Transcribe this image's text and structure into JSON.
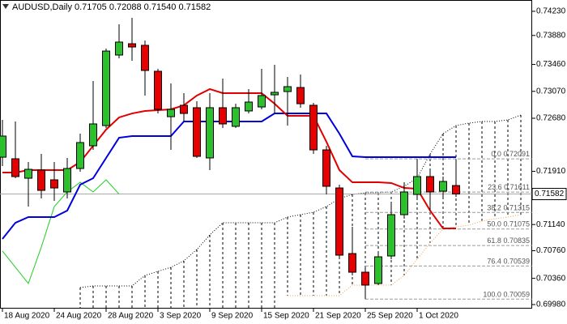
{
  "chart_data": {
    "type": "candlestick",
    "title": "AUDUSD,Daily  0.71705 0.72088 0.71540 0.71582",
    "categories": [
      "18 Aug 2020",
      null,
      null,
      null,
      "24 Aug 2020",
      null,
      null,
      null,
      "28 Aug 2020",
      null,
      null,
      null,
      "3 Sep 2020",
      null,
      null,
      null,
      "9 Sep 2020",
      null,
      null,
      null,
      "15 Sep 2020",
      null,
      null,
      null,
      "21 Sep 2020",
      null,
      null,
      null,
      "25 Sep 2020",
      null,
      null,
      null,
      "1 Oct 2020",
      null,
      null,
      null,
      null,
      null,
      null,
      null,
      null
    ],
    "candles": {
      "up_color": "#2cc02c",
      "down_color": "#e60000",
      "open": [
        0.72116,
        0.72093,
        0.71811,
        0.71929,
        0.71788,
        0.71612,
        0.71952,
        0.72281,
        0.72574,
        0.73596,
        0.7376,
        0.73737,
        0.73361,
        0.72703,
        0.72868,
        0.72833,
        0.72105,
        0.72833,
        0.72563,
        0.72786,
        0.72844,
        0.7302,
        0.73067,
        0.73126,
        0.72868,
        0.72222,
        0.7167,
        0.70719,
        0.70449,
        0.70285,
        0.70684,
        0.71283,
        0.71576,
        0.71835,
        0.71623,
        0.71705,
        null,
        null,
        null,
        null,
        null
      ],
      "high": [
        0.72656,
        0.72633,
        0.72046,
        0.72163,
        0.72046,
        0.72105,
        0.72457,
        0.7322,
        0.7369,
        0.74042,
        0.74136,
        0.73807,
        0.73396,
        0.73185,
        0.73044,
        0.72926,
        0.73044,
        0.73255,
        0.72891,
        0.73103,
        0.73396,
        0.73455,
        0.73279,
        0.73314,
        0.72903,
        0.72281,
        0.71717,
        0.71107,
        0.7052,
        0.70755,
        0.71459,
        0.71752,
        0.72091,
        0.71929,
        0.71835,
        0.72088,
        null,
        null,
        null,
        null,
        null
      ],
      "low": [
        0.71987,
        0.71811,
        0.714,
        0.71518,
        0.71482,
        0.71518,
        0.71905,
        0.72222,
        0.72539,
        0.73549,
        0.73513,
        0.73009,
        0.7275,
        0.72222,
        0.72633,
        0.72105,
        0.71929,
        0.72539,
        0.72539,
        0.7275,
        0.72809,
        0.7275,
        0.72574,
        0.72833,
        0.72163,
        0.71576,
        0.70637,
        0.70402,
        0.70059,
        0.70262,
        0.70637,
        0.71224,
        0.71518,
        0.71342,
        0.71518,
        0.7154,
        null,
        null,
        null,
        null,
        null
      ],
      "close": [
        0.72422,
        0.71835,
        0.7194,
        0.71635,
        0.7167,
        0.71952,
        0.72328,
        0.72598,
        0.73654,
        0.73784,
        0.73713,
        0.73373,
        0.72809,
        0.72809,
        0.7275,
        0.72128,
        0.72833,
        0.72598,
        0.72833,
        0.72915,
        0.73009,
        0.73056,
        0.73138,
        0.72891,
        0.72222,
        0.71694,
        0.70696,
        0.70449,
        0.70262,
        0.70672,
        0.71283,
        0.71612,
        0.71835,
        0.71612,
        0.71764,
        0.71582,
        null,
        null,
        null,
        null,
        null
      ]
    },
    "lines": {
      "tenkan": {
        "color": "#e00000",
        "values": [
          0.71893,
          0.71893,
          0.71929,
          0.71929,
          0.71929,
          0.71929,
          0.72046,
          0.72281,
          0.72516,
          0.72692,
          0.7275,
          0.72786,
          0.72797,
          0.72809,
          0.72868,
          0.73009,
          0.73103,
          0.73044,
          0.73044,
          0.73044,
          0.73044,
          0.72891,
          0.72715,
          0.72715,
          0.72715,
          0.72339,
          0.71929,
          0.71752,
          0.71752,
          0.71752,
          0.71741,
          0.7167,
          0.71659,
          0.71342,
          0.71083,
          0.71083,
          null,
          null,
          null,
          null,
          null
        ]
      },
      "kijun": {
        "color": "#0000dd",
        "values": [
          0.70931,
          0.71165,
          0.71248,
          0.71248,
          0.71248,
          0.71342,
          0.71717,
          0.71811,
          0.72105,
          0.72398,
          0.72422,
          0.72422,
          0.72422,
          0.72422,
          0.72633,
          0.72633,
          0.72633,
          0.72633,
          0.72633,
          0.72633,
          0.72633,
          0.7275,
          0.7275,
          0.7275,
          0.7275,
          0.7275,
          0.72457,
          0.72128,
          0.72116,
          0.72116,
          0.72116,
          0.72116,
          0.72116,
          0.72116,
          0.72116,
          0.72116,
          null,
          null,
          null,
          null,
          null
        ]
      },
      "chikou": {
        "color": "#22cc22",
        "values": [
          0.70755,
          0.7052,
          0.70285,
          0.70813,
          0.714,
          0.71612,
          0.71752,
          0.71612,
          0.71788,
          0.71582,
          null,
          null,
          null,
          null,
          null,
          null,
          null,
          null,
          null,
          null,
          null,
          null,
          null,
          null,
          null,
          null,
          null,
          null,
          null,
          null,
          null,
          null,
          null,
          null,
          null,
          null,
          null,
          null,
          null,
          null,
          null
        ]
      }
    },
    "cloud": {
      "hatch_color": "#000000",
      "upper": {
        "color": "#000000",
        "values": [
          null,
          null,
          null,
          null,
          null,
          null,
          0.70226,
          0.7025,
          0.7025,
          0.7025,
          0.7025,
          0.70402,
          0.70461,
          0.7052,
          0.70614,
          0.70778,
          0.70989,
          0.71165,
          0.71165,
          0.71165,
          0.71165,
          0.71165,
          0.71248,
          0.71283,
          0.71318,
          0.714,
          0.71518,
          0.71576,
          0.716,
          0.716,
          0.71612,
          0.71694,
          0.71811,
          0.72163,
          0.72457,
          0.72574,
          0.7261,
          0.72633,
          0.72633,
          0.72656,
          0.72727
        ]
      },
      "lower": {
        "color": "#f0a050",
        "values": [
          null,
          null,
          null,
          null,
          null,
          null,
          null,
          null,
          null,
          null,
          null,
          null,
          null,
          null,
          null,
          null,
          null,
          null,
          null,
          null,
          null,
          null,
          0.70109,
          0.70109,
          0.70109,
          0.70109,
          0.70109,
          0.70262,
          0.70262,
          0.70262,
          0.70262,
          0.70402,
          0.70637,
          0.70872,
          0.71072,
          0.71107,
          0.7113,
          0.71189,
          0.71224,
          0.71248,
          0.71283
        ]
      }
    },
    "fibonacci": {
      "color": "#9a9a9a",
      "levels": [
        {
          "level": "0.0",
          "price": 0.72091
        },
        {
          "level": "23.6",
          "price": 0.71611
        },
        {
          "level": "38.2",
          "price": 0.71315
        },
        {
          "level": "50.0",
          "price": 0.71075
        },
        {
          "level": "61.8",
          "price": 0.70835
        },
        {
          "level": "76.4",
          "price": 0.70539
        },
        {
          "level": "100.0",
          "price": 0.70059
        }
      ]
    },
    "ylim": [
      0.69933,
      0.74394
    ],
    "yticks": [
      {
        "value": 0.7423,
        "label": "0.74230"
      },
      {
        "value": 0.7388,
        "label": "0.73880"
      },
      {
        "value": 0.7346,
        "label": "0.73460"
      },
      {
        "value": 0.7307,
        "label": "0.73070"
      },
      {
        "value": 0.7268,
        "label": "0.72680"
      },
      {
        "value": 0.7191,
        "label": "0.71910"
      },
      {
        "value": 0.7114,
        "label": "0.71140"
      },
      {
        "value": 0.7076,
        "label": "0.70760"
      },
      {
        "value": 0.7036,
        "label": "0.70360"
      },
      {
        "value": 0.6998,
        "label": "0.69980"
      }
    ]
  }
}
